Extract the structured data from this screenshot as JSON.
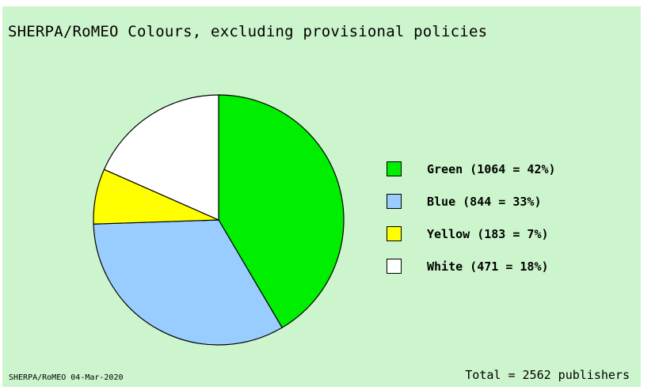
{
  "title": "SHERPA/RoMEO Colours, excluding provisional policies",
  "footer": {
    "source": "SHERPA/RoMEO 04-Mar-2020",
    "total": "Total = 2562 publishers"
  },
  "chart_data": {
    "type": "pie",
    "title": "SHERPA/RoMEO Colours, excluding provisional policies",
    "total": 2562,
    "start_angle_deg": 0,
    "direction": "clockwise",
    "legend_position": "right",
    "slices": [
      {
        "name": "Green",
        "value": 1064,
        "percent": 42,
        "color": "#00ee00",
        "label": "Green (1064 = 42%)"
      },
      {
        "name": "Blue",
        "value": 844,
        "percent": 33,
        "color": "#99ccff",
        "label": "Blue (844 = 33%)"
      },
      {
        "name": "Yellow",
        "value": 183,
        "percent": 7,
        "color": "#ffff00",
        "label": "Yellow (183 = 7%)"
      },
      {
        "name": "White",
        "value": 471,
        "percent": 18,
        "color": "#ffffff",
        "label": "White (471 = 18%)"
      }
    ]
  }
}
